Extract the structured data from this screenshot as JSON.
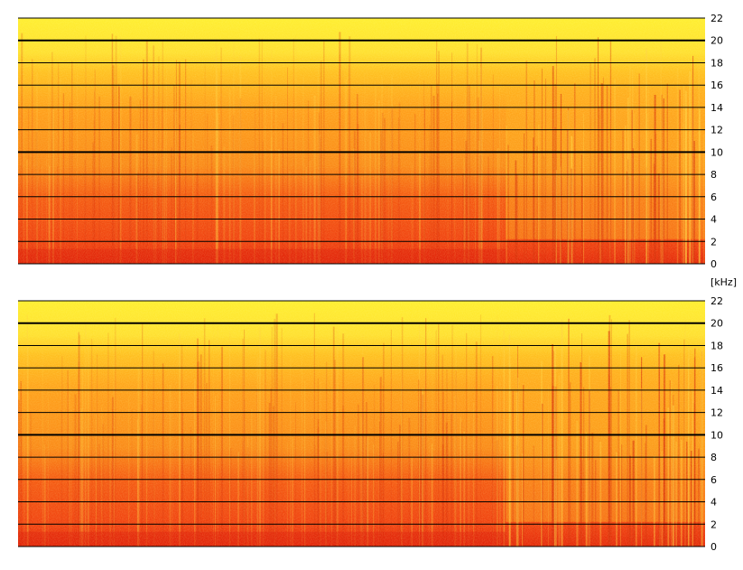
{
  "chart_data": [
    {
      "type": "heatmap",
      "channel": 1,
      "yticks": [
        0,
        2,
        4,
        6,
        8,
        10,
        12,
        14,
        16,
        18,
        20,
        22
      ],
      "ylim": [
        0,
        22
      ],
      "bold_gridlines": [
        10,
        20
      ],
      "grid": true,
      "energy_profile": "strongest below ~6 kHz, fading to yellow above ~18 kHz; drop in energy and vertical streaks after ~70% of the duration",
      "colormap": [
        "#ffff40",
        "#ffcc00",
        "#ff9a10",
        "#f05a10",
        "#e02a08"
      ]
    },
    {
      "type": "heatmap",
      "channel": 2,
      "yticks": [
        0,
        2,
        4,
        6,
        8,
        10,
        12,
        14,
        16,
        18,
        20,
        22
      ],
      "ylim": [
        0,
        22
      ],
      "bold_gridlines": [
        10,
        20
      ],
      "grid": true,
      "energy_profile": "strongest below ~6 kHz, fading to yellow above ~18 kHz; drop in energy and vertical streaks after ~70% of the duration",
      "colormap": [
        "#ffff40",
        "#ffcc00",
        "#ff9a10",
        "#f05a10",
        "#e02a08"
      ]
    }
  ],
  "unit_label": "[kHz]",
  "colors": {
    "background": "#ffffff",
    "gridline": "#000000",
    "low_energy": "#ffee22",
    "high_energy": "#e8300a"
  }
}
